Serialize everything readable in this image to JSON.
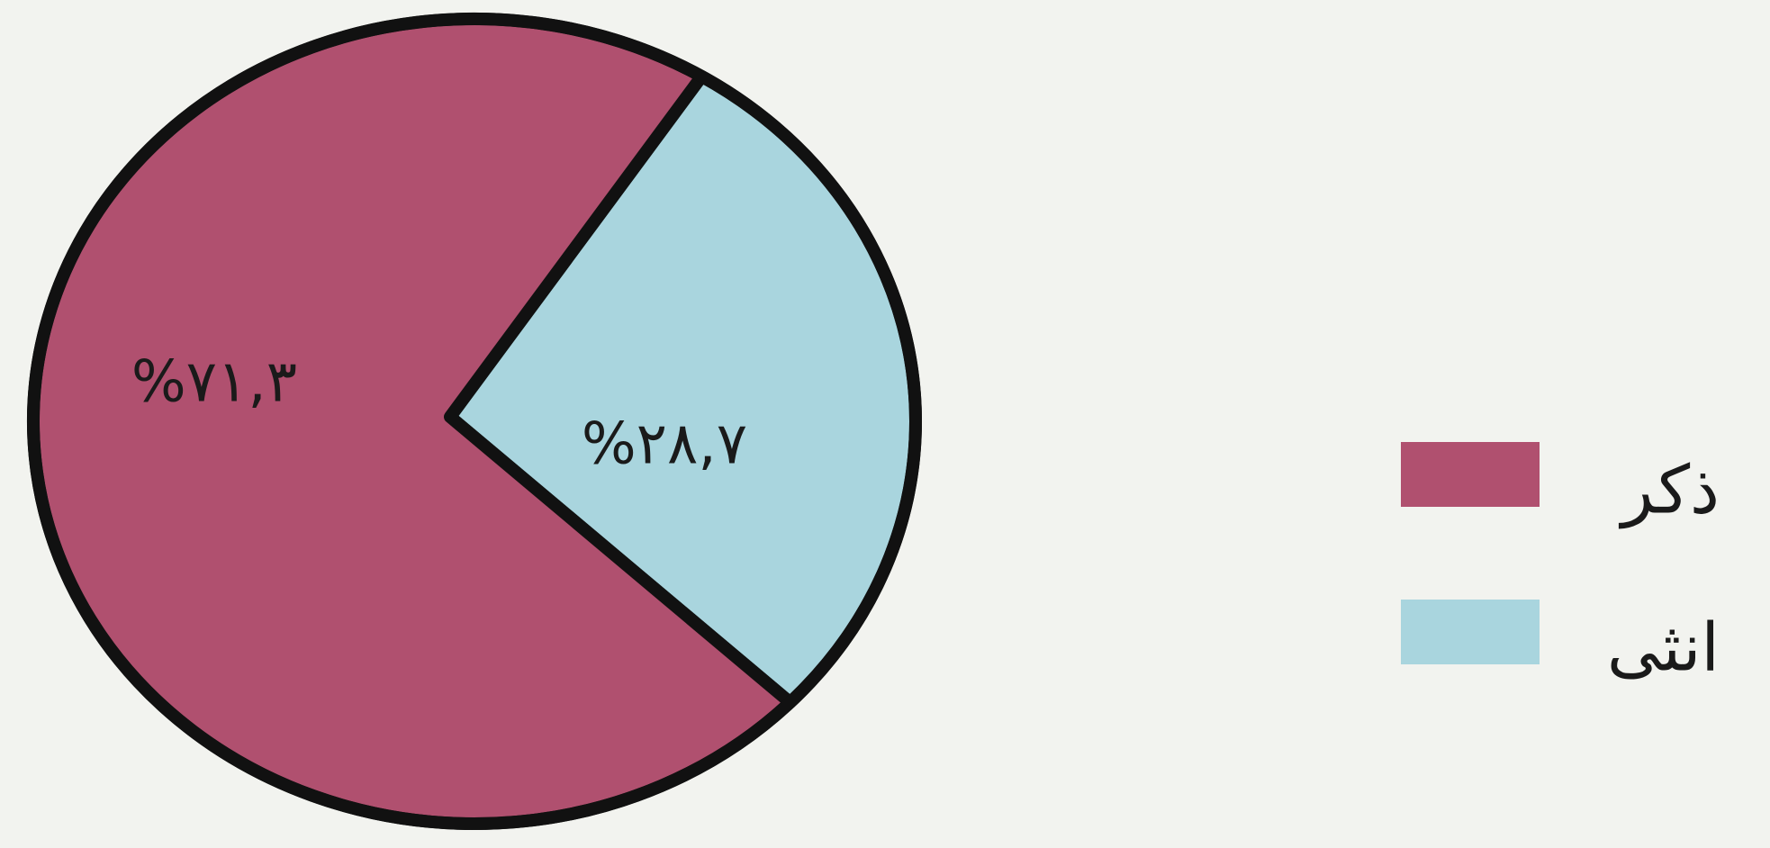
{
  "chart_data": {
    "type": "pie",
    "categories": [
      "ذكر",
      "انثى"
    ],
    "values": [
      71.3,
      28.7
    ],
    "value_labels": [
      "%٧١,٣",
      "%٢٨,٧"
    ],
    "colors": [
      "#b0506f",
      "#a9d5de"
    ],
    "legend": "right"
  }
}
